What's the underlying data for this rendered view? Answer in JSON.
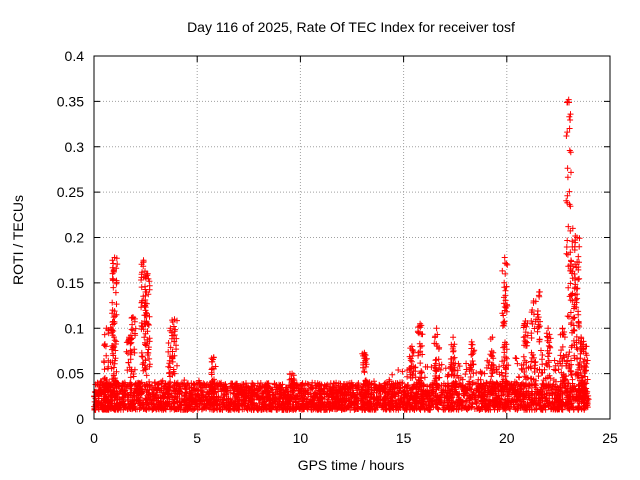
{
  "chart_data": {
    "type": "scatter",
    "title": "Day 116 of 2025, Rate Of TEC Index for receiver tosf",
    "xlabel": "GPS time / hours",
    "ylabel": "ROTI / TECUs",
    "xlim": [
      0,
      25
    ],
    "ylim": [
      0,
      0.4
    ],
    "xticks": [
      0,
      5,
      10,
      15,
      20,
      25
    ],
    "xtick_labels": [
      "0",
      "5",
      "10",
      "15",
      "20",
      "25"
    ],
    "yticks": [
      0,
      0.05,
      0.1,
      0.15,
      0.2,
      0.25,
      0.3,
      0.35,
      0.4
    ],
    "ytick_labels": [
      "0",
      "0.05",
      "0.1",
      "0.15",
      "0.2",
      "0.25",
      "0.3",
      "0.35",
      "0.4"
    ],
    "grid": true,
    "marker": "+",
    "color": "#ff0000",
    "series": [
      {
        "name": "ROTI",
        "x_range": [
          0,
          24
        ],
        "baseline_band": [
          0.01,
          0.04
        ],
        "background_level_by_hour": [
          [
            0,
            0.045
          ],
          [
            2,
            0.04
          ],
          [
            4,
            0.045
          ],
          [
            6,
            0.04
          ],
          [
            8,
            0.035
          ],
          [
            10,
            0.035
          ],
          [
            12,
            0.04
          ],
          [
            14,
            0.045
          ],
          [
            15,
            0.06
          ],
          [
            17,
            0.06
          ],
          [
            19,
            0.065
          ],
          [
            21,
            0.07
          ],
          [
            23,
            0.065
          ],
          [
            24,
            0.04
          ]
        ],
        "peaks": [
          {
            "x": 0.6,
            "y": 0.1
          },
          {
            "x": 0.9,
            "y": 0.12
          },
          {
            "x": 1.0,
            "y": 0.178
          },
          {
            "x": 1.7,
            "y": 0.09
          },
          {
            "x": 1.9,
            "y": 0.112
          },
          {
            "x": 2.4,
            "y": 0.175
          },
          {
            "x": 2.6,
            "y": 0.16
          },
          {
            "x": 3.7,
            "y": 0.1
          },
          {
            "x": 3.9,
            "y": 0.11
          },
          {
            "x": 5.8,
            "y": 0.068
          },
          {
            "x": 9.6,
            "y": 0.05
          },
          {
            "x": 13.1,
            "y": 0.073
          },
          {
            "x": 15.4,
            "y": 0.08
          },
          {
            "x": 15.8,
            "y": 0.105
          },
          {
            "x": 16.6,
            "y": 0.1
          },
          {
            "x": 17.4,
            "y": 0.09
          },
          {
            "x": 18.3,
            "y": 0.085
          },
          {
            "x": 19.3,
            "y": 0.09
          },
          {
            "x": 19.9,
            "y": 0.178
          },
          {
            "x": 20.9,
            "y": 0.108
          },
          {
            "x": 21.3,
            "y": 0.13
          },
          {
            "x": 21.6,
            "y": 0.14
          },
          {
            "x": 22.0,
            "y": 0.1
          },
          {
            "x": 22.7,
            "y": 0.1
          },
          {
            "x": 23.0,
            "y": 0.352
          },
          {
            "x": 23.2,
            "y": 0.21
          },
          {
            "x": 23.4,
            "y": 0.2
          },
          {
            "x": 23.6,
            "y": 0.09
          },
          {
            "x": 23.8,
            "y": 0.08
          }
        ]
      }
    ]
  }
}
